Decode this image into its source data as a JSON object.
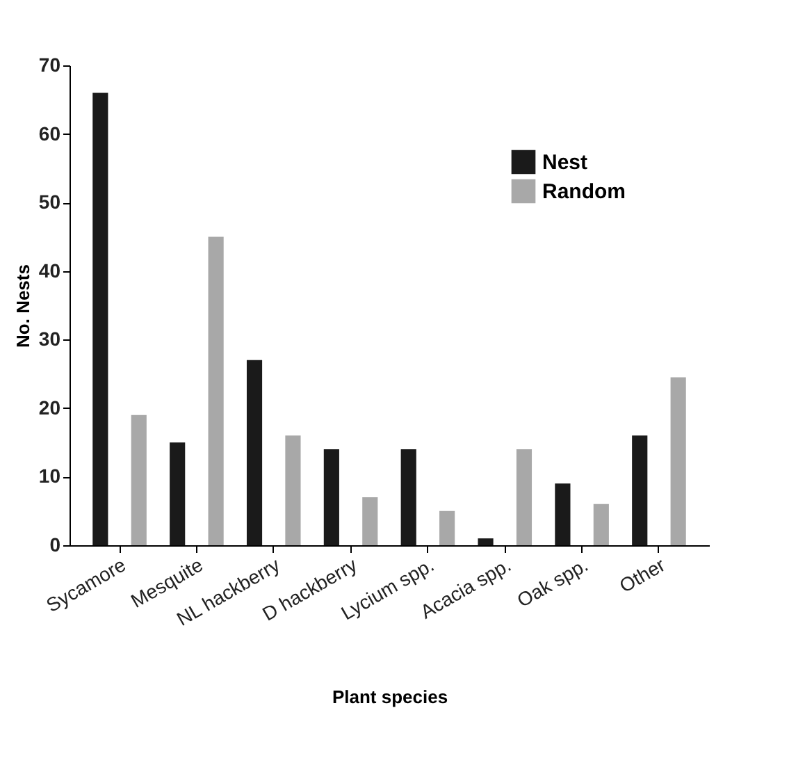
{
  "chart_data": {
    "type": "bar",
    "xlabel": "Plant species",
    "ylabel": "No. Nests",
    "categories": [
      "Sycamore",
      "Mesquite",
      "NL hackberry",
      "D hackberry",
      "Lycium spp.",
      "Acacia spp.",
      "Oak spp.",
      "Other"
    ],
    "series": [
      {
        "name": "Nest",
        "color": "#1a1a1a",
        "values": [
          66,
          15,
          27,
          14,
          14,
          1,
          9,
          16
        ]
      },
      {
        "name": "Random",
        "color": "#a8a8a8",
        "values": [
          19,
          45,
          16,
          7,
          5,
          14,
          6,
          24.5
        ]
      }
    ],
    "ylim": [
      0,
      70
    ],
    "yticks": [
      0,
      10,
      20,
      30,
      40,
      50,
      60,
      70
    ],
    "grid": false,
    "legend": "top right"
  }
}
